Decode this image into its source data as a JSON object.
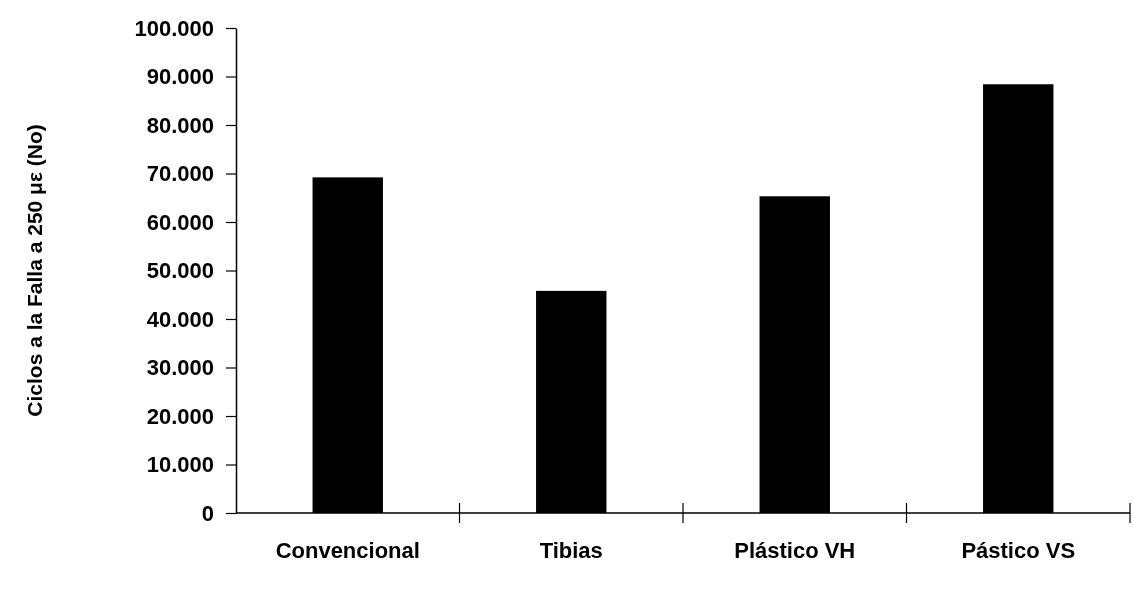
{
  "chart_data": {
    "type": "bar",
    "ylabel": "Ciclos a la Falla a 250 με (No)",
    "categories": [
      "Convencional",
      "Tibias",
      "Plástico VH",
      "Pástico VS"
    ],
    "values": [
      69200,
      45800,
      65300,
      88400
    ],
    "color": "#000000",
    "ylim": [
      0,
      100000
    ],
    "yticks": [
      {
        "value": 0,
        "label": "0"
      },
      {
        "value": 10000,
        "label": "10.000"
      },
      {
        "value": 20000,
        "label": "20.000"
      },
      {
        "value": 30000,
        "label": "30.000"
      },
      {
        "value": 40000,
        "label": "40.000"
      },
      {
        "value": 50000,
        "label": "50.000"
      },
      {
        "value": 60000,
        "label": "60.000"
      },
      {
        "value": 70000,
        "label": "70.000"
      },
      {
        "value": 80000,
        "label": "80.000"
      },
      {
        "value": 90000,
        "label": "90.000"
      },
      {
        "value": 100000,
        "label": "100.000"
      }
    ],
    "grid": false
  }
}
